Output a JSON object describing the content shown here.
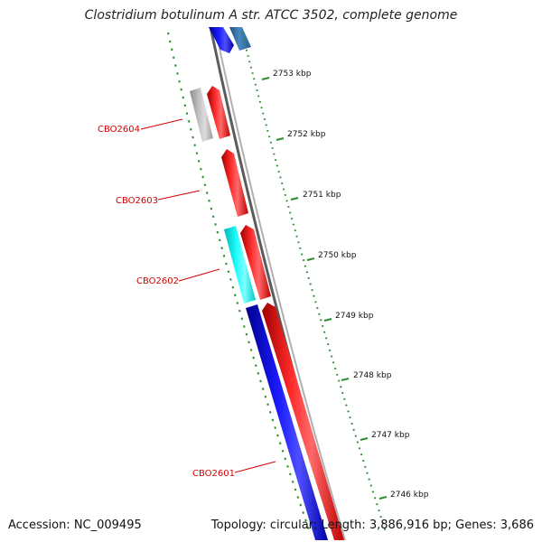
{
  "title": "Clostridium botulinum A str. ATCC 3502, complete genome",
  "accession": "Accession: NC_009495",
  "summary": "Topology: circular; Length: 3,886,916 bp; Genes: 3,686",
  "colors": {
    "backbone": "#7a7a7a",
    "tick": "#2e8b2e",
    "tick_label": "#111111",
    "gene_label": "#d40000",
    "red": "#ff1010",
    "blue": "#1010e6",
    "cyan": "#10f0f0",
    "gray": "#b4b4b4",
    "steel": "#3d78b0"
  },
  "ticks": [
    {
      "label": "2753 kbp"
    },
    {
      "label": "2752 kbp"
    },
    {
      "label": "2751 kbp"
    },
    {
      "label": "2750 kbp"
    },
    {
      "label": "2749 kbp"
    },
    {
      "label": "2748 kbp"
    },
    {
      "label": "2747 kbp"
    },
    {
      "label": "2746 kbp"
    }
  ],
  "gene_labels": [
    {
      "label": "CBO2604"
    },
    {
      "label": "CBO2603"
    },
    {
      "label": "CBO2602"
    },
    {
      "label": "CBO2601"
    }
  ]
}
